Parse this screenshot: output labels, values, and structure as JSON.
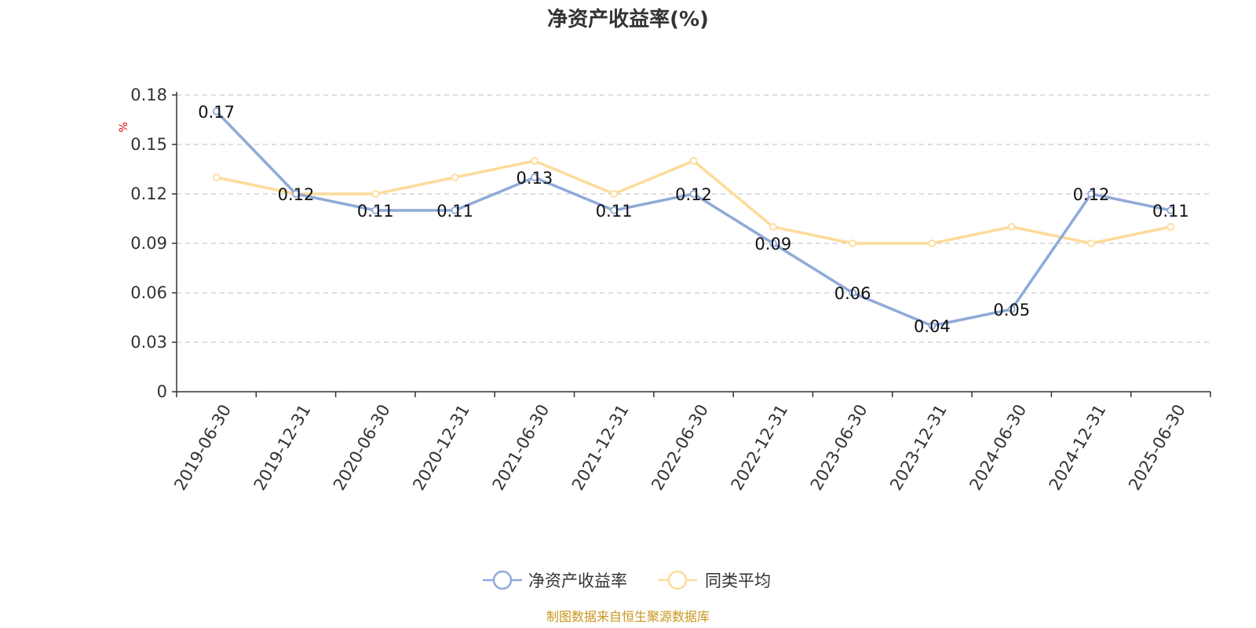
{
  "chart_data": {
    "type": "line",
    "title": "净资产收益率(%)",
    "ylabel": "%",
    "ylim": [
      0,
      0.18
    ],
    "yticks": [
      "0",
      "0.03",
      "0.06",
      "0.09",
      "0.12",
      "0.15",
      "0.18"
    ],
    "categories": [
      "2019-06-30",
      "2019-12-31",
      "2020-06-30",
      "2020-12-31",
      "2021-06-30",
      "2021-12-31",
      "2022-06-30",
      "2022-12-31",
      "2023-06-30",
      "2023-12-31",
      "2024-06-30",
      "2024-12-31",
      "2025-06-30"
    ],
    "series": [
      {
        "name": "净资产收益率",
        "color": "#8eaad8",
        "values": [
          0.17,
          0.12,
          0.11,
          0.11,
          0.13,
          0.11,
          0.12,
          0.09,
          0.06,
          0.04,
          0.05,
          0.12,
          0.11
        ],
        "labels": [
          "0.17",
          "0.12",
          "0.11",
          "0.11",
          "0.13",
          "0.11",
          "0.12",
          "0.09",
          "0.06",
          "0.04",
          "0.05",
          "0.12",
          "0.11"
        ]
      },
      {
        "name": "同类平均",
        "color": "#fddb9a",
        "values": [
          0.13,
          0.12,
          0.12,
          0.13,
          0.14,
          0.12,
          0.14,
          0.1,
          0.09,
          0.09,
          0.1,
          0.09,
          0.1
        ]
      }
    ],
    "grid": true,
    "legend_position": "bottom-center"
  },
  "footer": {
    "source": "制图数据来自恒生聚源数据库"
  }
}
